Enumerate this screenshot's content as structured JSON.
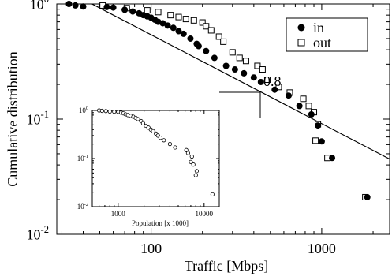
{
  "chart_data": [
    {
      "type": "scatter",
      "scale": "log-log",
      "xlabel": "Traffic [Mbps]",
      "ylabel": "Cumulative distribution",
      "xlim": [
        28,
        2500
      ],
      "ylim": [
        0.01,
        1
      ],
      "x_ticks": [
        {
          "value": 100,
          "label": "100"
        },
        {
          "value": 1000,
          "label": "1000"
        }
      ],
      "y_ticks": [
        {
          "value": 1,
          "base": "10",
          "exp": "0"
        },
        {
          "value": 0.1,
          "base": "10",
          "exp": "-1"
        },
        {
          "value": 0.01,
          "base": "10",
          "exp": "-2"
        }
      ],
      "legend": {
        "position": "top-right",
        "entries": [
          {
            "series": "in",
            "marker": "filled-circle"
          },
          {
            "series": "out",
            "marker": "open-square"
          }
        ]
      },
      "series": [
        {
          "name": "in",
          "marker": "filled-circle",
          "points": [
            [
              33,
              1.0
            ],
            [
              36,
              0.97
            ],
            [
              40,
              0.95
            ],
            [
              55,
              0.94
            ],
            [
              60,
              0.93
            ],
            [
              70,
              0.89
            ],
            [
              78,
              0.86
            ],
            [
              85,
              0.83
            ],
            [
              90,
              0.8
            ],
            [
              95,
              0.78
            ],
            [
              100,
              0.76
            ],
            [
              105,
              0.73
            ],
            [
              110,
              0.7
            ],
            [
              117,
              0.68
            ],
            [
              125,
              0.65
            ],
            [
              135,
              0.62
            ],
            [
              145,
              0.58
            ],
            [
              155,
              0.55
            ],
            [
              170,
              0.5
            ],
            [
              185,
              0.45
            ],
            [
              190,
              0.43
            ],
            [
              210,
              0.39
            ],
            [
              235,
              0.34
            ],
            [
              275,
              0.29
            ],
            [
              310,
              0.27
            ],
            [
              350,
              0.25
            ],
            [
              400,
              0.23
            ],
            [
              440,
              0.21
            ],
            [
              530,
              0.18
            ],
            [
              640,
              0.16
            ],
            [
              740,
              0.13
            ],
            [
              870,
              0.11
            ],
            [
              950,
              0.088
            ],
            [
              1000,
              0.064
            ],
            [
              1150,
              0.046
            ],
            [
              1850,
              0.021
            ]
          ]
        },
        {
          "name": "out",
          "marker": "open-square",
          "points": [
            [
              52,
              0.97
            ],
            [
              72,
              0.92
            ],
            [
              95,
              0.88
            ],
            [
              110,
              0.85
            ],
            [
              130,
              0.8
            ],
            [
              145,
              0.77
            ],
            [
              160,
              0.74
            ],
            [
              178,
              0.72
            ],
            [
              200,
              0.69
            ],
            [
              210,
              0.64
            ],
            [
              225,
              0.59
            ],
            [
              250,
              0.52
            ],
            [
              265,
              0.47
            ],
            [
              300,
              0.38
            ],
            [
              330,
              0.34
            ],
            [
              360,
              0.32
            ],
            [
              420,
              0.29
            ],
            [
              450,
              0.27
            ],
            [
              480,
              0.22
            ],
            [
              560,
              0.19
            ],
            [
              650,
              0.17
            ],
            [
              780,
              0.15
            ],
            [
              840,
              0.13
            ],
            [
              900,
              0.115
            ],
            [
              950,
              0.09
            ],
            [
              920,
              0.065
            ],
            [
              1080,
              0.046
            ],
            [
              1800,
              0.021
            ]
          ]
        },
        {
          "name": "",
          "type": "line",
          "slope_label": "0.8",
          "points": [
            [
              45,
              1.0
            ],
            [
              2500,
              0.045
            ]
          ]
        }
      ],
      "annotations": [
        {
          "text": "0.8"
        }
      ]
    },
    {
      "type": "scatter",
      "scale": "log-log",
      "xlabel": "Population [x 1000]",
      "ylabel": "",
      "xlim": [
        500,
        15000
      ],
      "ylim": [
        0.01,
        1
      ],
      "x_ticks": [
        {
          "value": 1000,
          "label": "1000"
        },
        {
          "value": 10000,
          "label": "10000"
        }
      ],
      "y_ticks": [
        {
          "value": 1,
          "base": "10",
          "exp": "0"
        },
        {
          "value": 0.1,
          "base": "10",
          "exp": "-1"
        },
        {
          "value": 0.01,
          "base": "10",
          "exp": "-2"
        }
      ],
      "series": [
        {
          "name": "",
          "marker": "open-circle",
          "points": [
            [
              600,
              1.0
            ],
            [
              650,
              0.98
            ],
            [
              720,
              0.97
            ],
            [
              800,
              0.95
            ],
            [
              900,
              0.94
            ],
            [
              1000,
              0.93
            ],
            [
              1080,
              0.9
            ],
            [
              1150,
              0.87
            ],
            [
              1220,
              0.83
            ],
            [
              1300,
              0.8
            ],
            [
              1400,
              0.77
            ],
            [
              1500,
              0.74
            ],
            [
              1600,
              0.7
            ],
            [
              1700,
              0.66
            ],
            [
              1850,
              0.6
            ],
            [
              1950,
              0.54
            ],
            [
              2100,
              0.48
            ],
            [
              2250,
              0.44
            ],
            [
              2400,
              0.4
            ],
            [
              2550,
              0.37
            ],
            [
              2750,
              0.33
            ],
            [
              2900,
              0.3
            ],
            [
              3100,
              0.27
            ],
            [
              3400,
              0.24
            ],
            [
              4000,
              0.2
            ],
            [
              4600,
              0.17
            ],
            [
              6200,
              0.15
            ],
            [
              6500,
              0.13
            ],
            [
              7200,
              0.11
            ],
            [
              7000,
              0.085
            ],
            [
              7500,
              0.075
            ],
            [
              8200,
              0.055
            ],
            [
              8000,
              0.045
            ],
            [
              12500,
              0.018
            ]
          ]
        }
      ]
    }
  ]
}
